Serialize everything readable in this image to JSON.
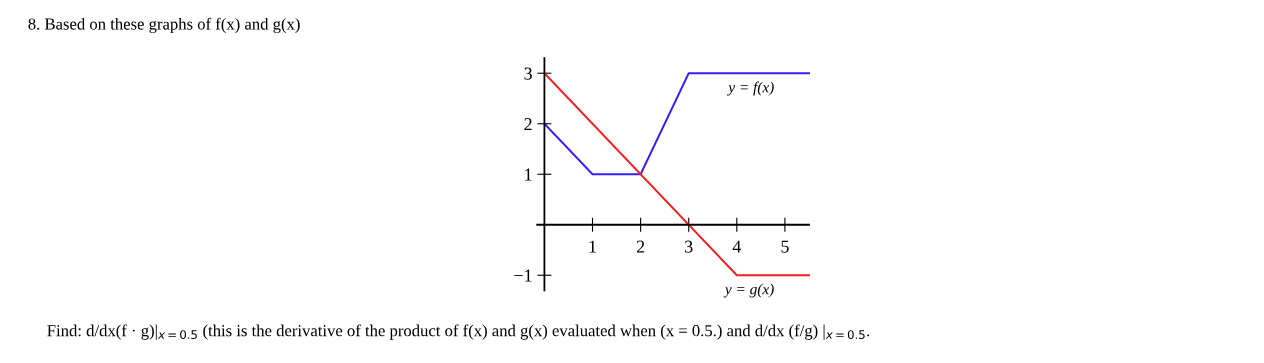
{
  "chart_data": {
    "type": "line",
    "title": "8. Based on these graphs of f(x) and g(x)",
    "annotations": [
      "Find: d/dx(f · g)|$_{x=0.5}$ (this is the derivative of the product of f(x) and g(x) evaluated when (x = 0.5.) and d/dx (f/g) |$_{x=0.5}$."
    ],
    "series": [
      {
        "name": "y = f(x)",
        "color": "#3a1ff5",
        "x": [
          0,
          1,
          2,
          3,
          5.5
        ],
        "values": [
          2,
          1,
          1,
          3,
          3
        ]
      },
      {
        "name": "y = g(x)",
        "color": "#f02020",
        "x": [
          0,
          4,
          5.5
        ],
        "values": [
          3,
          -1,
          -1
        ]
      }
    ],
    "xlim": [
      -0.15,
      5.5
    ],
    "ylim": [
      -1.3,
      3.3
    ],
    "xticks": [
      1,
      2,
      3,
      4,
      5
    ],
    "yticks": [
      {
        "value": -1,
        "label": "−1"
      },
      1,
      2,
      3
    ],
    "grid": false,
    "legend": false,
    "marker": "none",
    "line_style": "solid"
  }
}
